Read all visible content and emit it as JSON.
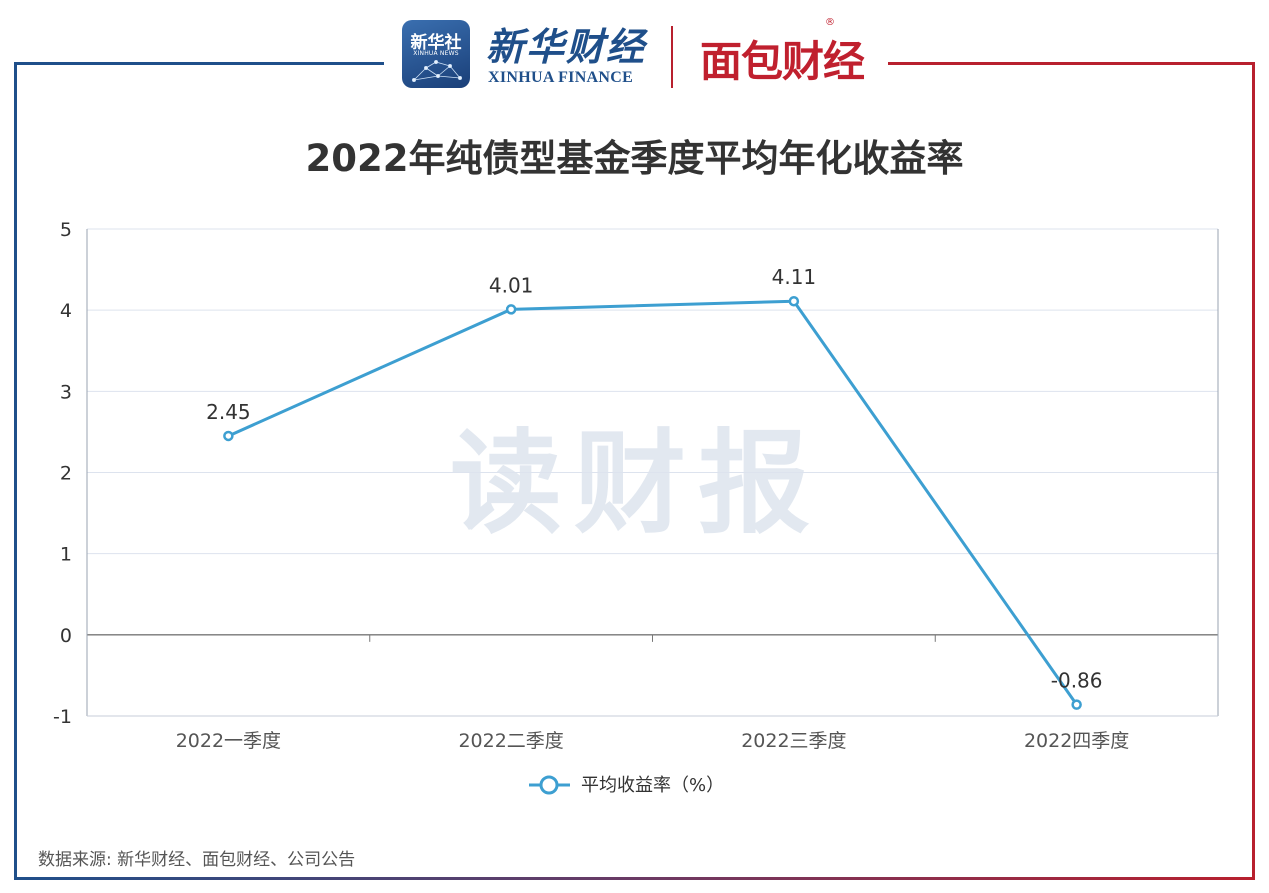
{
  "header": {
    "logo_xinhua_cn": "新华社",
    "logo_xinhua_en": "XINHUA NEWS",
    "brand_cn": "新华财经",
    "brand_en": "XINHUA FINANCE",
    "brand_mianbao": "面包财经",
    "reg_mark": "®"
  },
  "watermark": "读财报",
  "source": "数据来源: 新华财经、面包财经、公司公告",
  "colors": {
    "line": "#3d9fd1",
    "frame_left": "#1f4f8a",
    "frame_right": "#b8202e"
  },
  "chart_data": {
    "type": "line",
    "title": "2022年纯债型基金季度平均年化收益率",
    "categories": [
      "2022一季度",
      "2022二季度",
      "2022三季度",
      "2022四季度"
    ],
    "series": [
      {
        "name": "平均收益率（%）",
        "values": [
          2.45,
          4.01,
          4.11,
          -0.86
        ]
      }
    ],
    "data_labels": [
      "2.45",
      "4.01",
      "4.11",
      "-0.86"
    ],
    "y_ticks": [
      "5",
      "4",
      "3",
      "2",
      "1",
      "0",
      "-1"
    ],
    "ylim": [
      -1,
      5
    ],
    "grid": true,
    "legend_position": "bottom-center"
  }
}
